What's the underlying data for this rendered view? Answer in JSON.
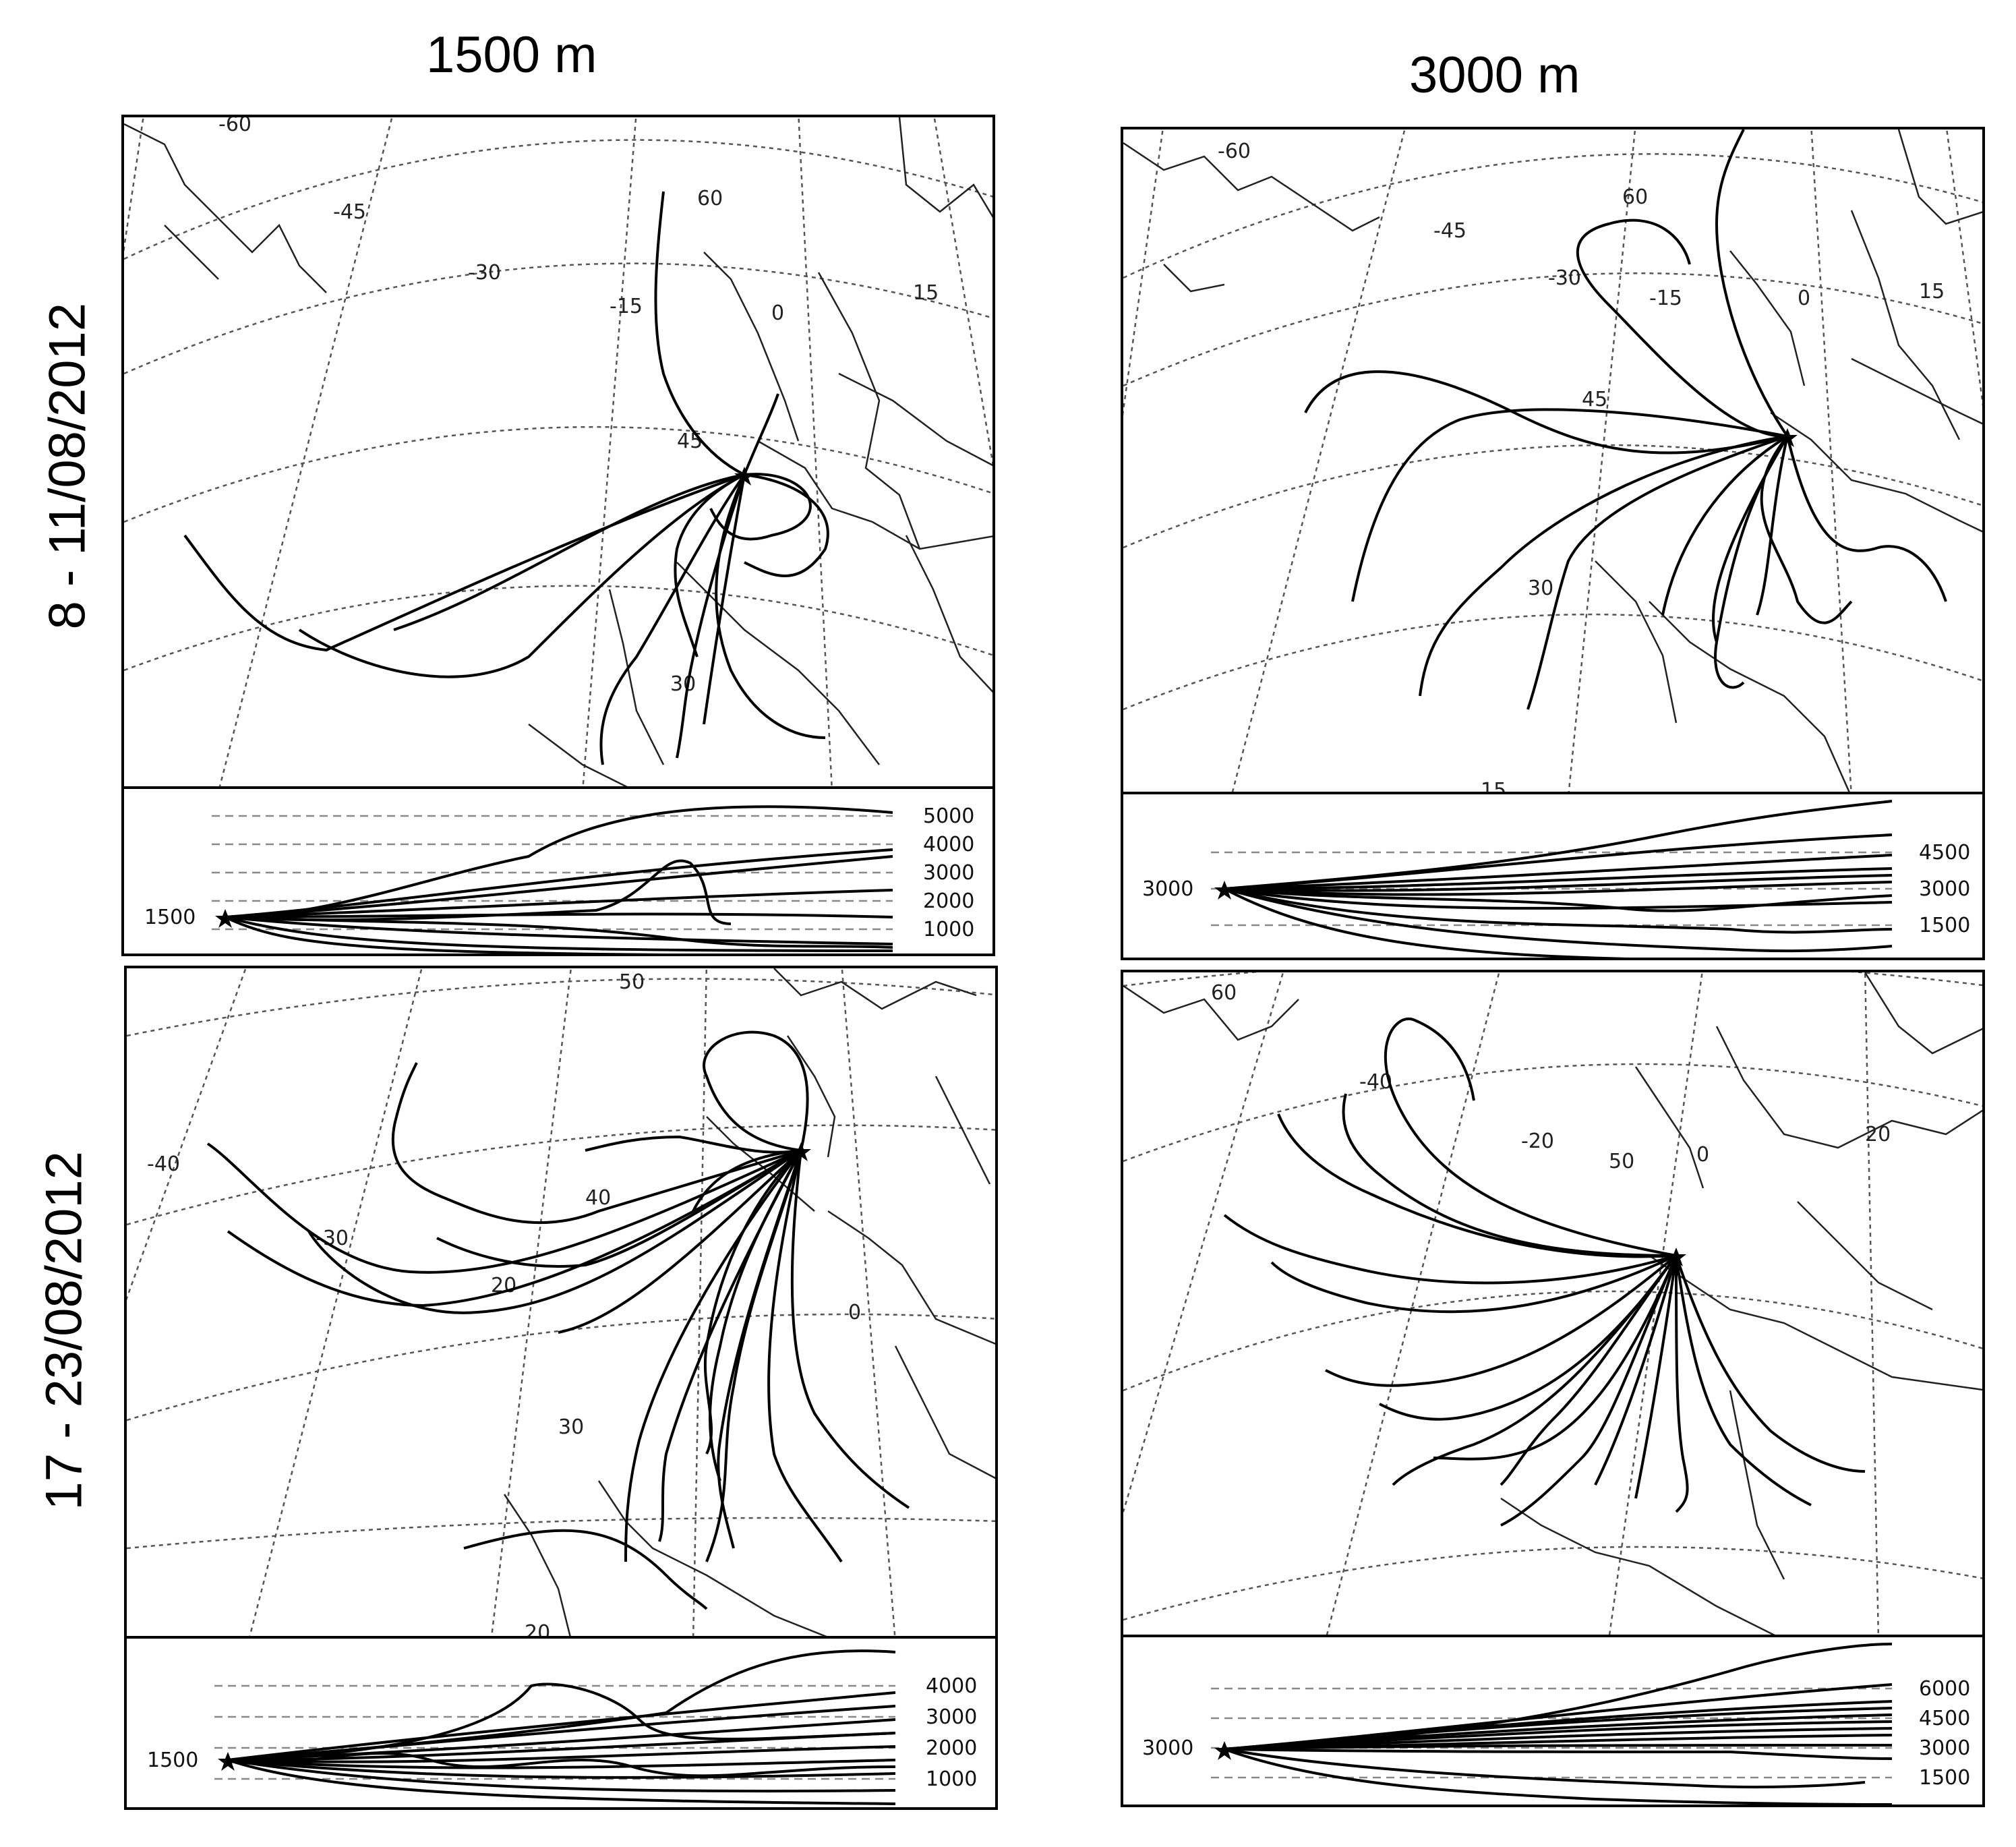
{
  "figure": {
    "column_titles": [
      "1500 m",
      "3000 m"
    ],
    "row_titles": [
      "8 - 11/08/2012",
      "17 - 23/08/2012"
    ]
  },
  "panels": [
    {
      "id": "p11",
      "grid_labels": [
        "-60",
        "-45",
        "-30",
        "-15",
        "0",
        "15",
        "60",
        "45",
        "30"
      ],
      "start_label": "1500",
      "levels": [
        "5000",
        "4000",
        "3000",
        "2000",
        "1000"
      ]
    },
    {
      "id": "p12",
      "grid_labels": [
        "-60",
        "-45",
        "-30",
        "-15",
        "0",
        "15",
        "60",
        "45",
        "30",
        "15"
      ],
      "start_label": "3000",
      "levels": [
        "4500",
        "3000",
        "1500"
      ]
    },
    {
      "id": "p21",
      "grid_labels": [
        "50",
        "-40",
        "-30",
        "40",
        "20",
        "0",
        "30",
        "20"
      ],
      "start_label": "1500",
      "levels": [
        "4000",
        "3000",
        "2000",
        "1000"
      ]
    },
    {
      "id": "p22",
      "grid_labels": [
        "60",
        "-40",
        "-20",
        "50",
        "0",
        "20"
      ],
      "start_label": "3000",
      "levels": [
        "6000",
        "4500",
        "3000",
        "1500"
      ]
    }
  ],
  "colors": {
    "trajectory": "#000000",
    "graticule": "#555555",
    "coast": "#222222",
    "dashed": "#888888"
  }
}
